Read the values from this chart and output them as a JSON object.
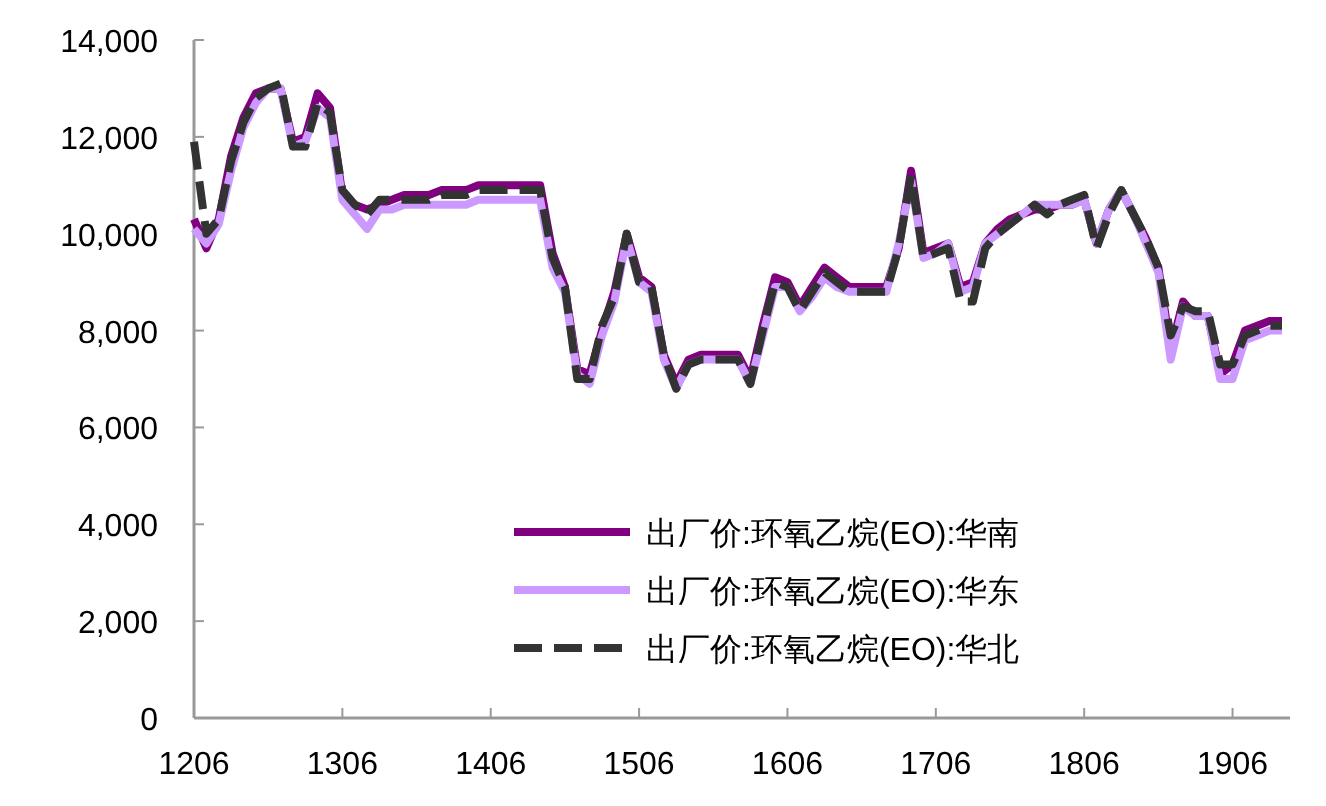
{
  "chart_data": {
    "type": "line",
    "legend": "bottom right",
    "categories": [
      "1206",
      null,
      null,
      null,
      null,
      null,
      null,
      null,
      null,
      null,
      null,
      null,
      "1306",
      null,
      null,
      null,
      null,
      null,
      null,
      null,
      null,
      null,
      null,
      null,
      "1406",
      null,
      null,
      null,
      null,
      null,
      null,
      null,
      null,
      null,
      null,
      null,
      "1506",
      null,
      null,
      null,
      null,
      null,
      null,
      null,
      null,
      null,
      null,
      null,
      "1606",
      null,
      null,
      null,
      null,
      null,
      null,
      null,
      null,
      null,
      null,
      null,
      "1706",
      null,
      null,
      null,
      null,
      null,
      null,
      null,
      null,
      null,
      null,
      null,
      "1806",
      null,
      null,
      null,
      null,
      null,
      null,
      null,
      null,
      null,
      null,
      null,
      "1906",
      null,
      null,
      null,
      null
    ],
    "ylim": [
      0,
      14000
    ],
    "yticks": [
      {
        "value": 0,
        "label": "0"
      },
      {
        "value": 2000,
        "label": "2,000"
      },
      {
        "value": 4000,
        "label": "4,000"
      },
      {
        "value": 6000,
        "label": "6,000"
      },
      {
        "value": 8000,
        "label": "8,000"
      },
      {
        "value": 10000,
        "label": "10,000"
      },
      {
        "value": 12000,
        "label": "12,000"
      },
      {
        "value": 14000,
        "label": "14,000"
      }
    ],
    "series": [
      {
        "name": "出厂价:环氧乙烷(EO):华南",
        "color": "#800080",
        "line_style": "solid",
        "values": [
          10300,
          9700,
          10300,
          11600,
          12400,
          12900,
          13000,
          13000,
          11900,
          12000,
          12900,
          12600,
          10800,
          10600,
          10500,
          10600,
          10700,
          10800,
          10800,
          10800,
          10900,
          10900,
          10900,
          11000,
          11000,
          11000,
          11000,
          11000,
          11000,
          9600,
          8900,
          7200,
          7100,
          8000,
          8800,
          10000,
          9100,
          8900,
          7500,
          6900,
          7400,
          7500,
          7500,
          7500,
          7500,
          7000,
          8100,
          9100,
          9000,
          8500,
          8900,
          9300,
          9100,
          8900,
          8900,
          8900,
          8900,
          9700,
          11300,
          9600,
          9700,
          9800,
          8900,
          9000,
          9800,
          10100,
          10300,
          10400,
          10500,
          10500,
          10600,
          10600,
          10700,
          9800,
          10500,
          10900,
          10400,
          9900,
          9300,
          7600,
          8600,
          8300,
          8300,
          7100,
          7300,
          8000,
          8100,
          8200,
          8200
        ]
      },
      {
        "name": "出厂价:环氧乙烷(EO):华东",
        "color": "#cc99ff",
        "line_style": "solid",
        "values": [
          10100,
          9800,
          10200,
          11300,
          12200,
          12700,
          13000,
          13000,
          11800,
          11900,
          12600,
          12400,
          10700,
          10400,
          10100,
          10500,
          10500,
          10600,
          10600,
          10600,
          10600,
          10600,
          10600,
          10700,
          10700,
          10700,
          10700,
          10700,
          10700,
          9300,
          8800,
          7100,
          6900,
          7900,
          8600,
          9900,
          9000,
          8800,
          7400,
          6800,
          7300,
          7400,
          7400,
          7400,
          7400,
          6900,
          7900,
          8900,
          8900,
          8400,
          8700,
          9100,
          8900,
          8800,
          8800,
          8800,
          8800,
          9800,
          11100,
          9500,
          9600,
          9800,
          8800,
          8900,
          9800,
          10000,
          10200,
          10400,
          10600,
          10600,
          10600,
          10600,
          10700,
          9800,
          10500,
          10900,
          10400,
          9800,
          9200,
          7400,
          8500,
          8300,
          8300,
          7000,
          7000,
          7800,
          7900,
          8000,
          8000
        ]
      },
      {
        "name": "出厂价:环氧乙烷(EO):华北",
        "color": "#333333",
        "line_style": "dashed",
        "values": [
          11900,
          10000,
          10300,
          11500,
          12300,
          12800,
          13000,
          13100,
          11800,
          11800,
          12700,
          12500,
          10900,
          10600,
          10400,
          10700,
          10700,
          10700,
          10700,
          10700,
          10800,
          10800,
          10800,
          10900,
          10900,
          10900,
          10900,
          10900,
          10900,
          9500,
          8900,
          7000,
          7000,
          8100,
          8700,
          10000,
          9000,
          8900,
          7500,
          6800,
          7300,
          7400,
          7400,
          7400,
          7400,
          6900,
          8000,
          9000,
          8900,
          8400,
          8800,
          9200,
          9000,
          8800,
          8800,
          8800,
          8800,
          9700,
          11200,
          9500,
          9600,
          9700,
          8600,
          8600,
          9700,
          10000,
          10200,
          10400,
          10600,
          10400,
          10600,
          10700,
          10800,
          9700,
          10400,
          10900,
          10400,
          9900,
          9300,
          7900,
          8500,
          8400,
          8400,
          7300,
          7300,
          7900,
          8000,
          8100,
          8100
        ]
      }
    ]
  }
}
